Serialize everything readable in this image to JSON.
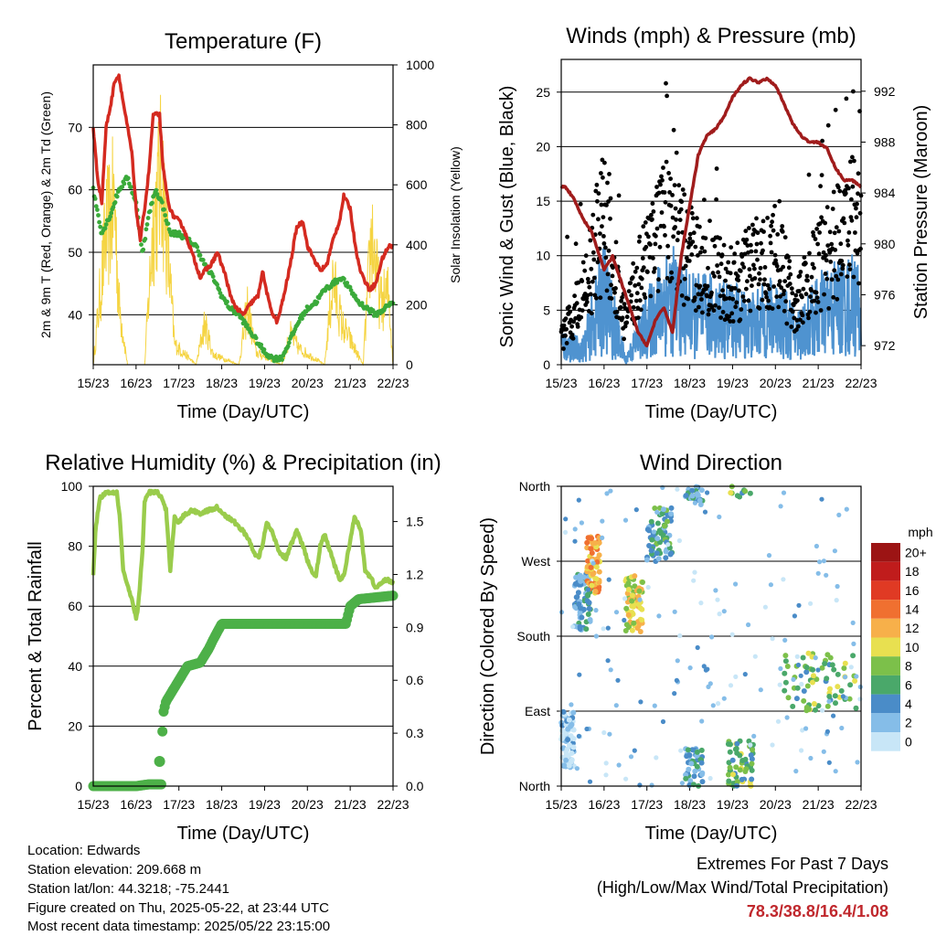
{
  "footer": {
    "location": "Location: Edwards",
    "elevation": "Station elevation: 209.668 m",
    "latlon": "Station lat/lon: 44.3218; -75.2441",
    "created": "Figure created on Thu, 2025-05-22, at 23:44 UTC",
    "timestamp": "Most recent data timestamp: 2025/05/22 23:15:00",
    "extremes_title": "Extremes For Past 7 Days",
    "extremes_subtitle": "(High/Low/Max Wind/Total Precipitation)",
    "extremes_values": "78.3/38.8/16.4/1.08",
    "extremes_color": "#c0282d"
  },
  "colors": {
    "temp2m": "#2ca32c",
    "temp9m": "#e07820",
    "tempRed": "#d42a20",
    "dewpoint": "#3aaa3a",
    "solar": "#f5d442",
    "sonic": "#4f93d0",
    "gust": "#000000",
    "pressure": "#a01c1c",
    "rh": "#9acc4c",
    "precip": "#4db048"
  },
  "chart_data": [
    {
      "type": "line",
      "title": "Temperature (F)",
      "xlabel": "Time (Day/UTC)",
      "ylabel": "2m & 9m T (Red, Orange) & 2m Td (Green)",
      "y2label": "Solar Insolation (Yellow)",
      "x_ticks": [
        "15/23",
        "16/23",
        "17/23",
        "18/23",
        "19/23",
        "20/23",
        "21/23",
        "22/23"
      ],
      "ylim": [
        32,
        80
      ],
      "y_ticks": [
        40,
        50,
        60,
        70
      ],
      "y2lim": [
        0,
        1000
      ],
      "y2_ticks": [
        0,
        200,
        400,
        600,
        800,
        1000
      ],
      "grid": true,
      "series": [
        {
          "key": "temp",
          "color_key": "tempRed",
          "x": [
            0,
            0.1,
            0.2,
            0.3,
            0.42,
            0.5,
            0.6,
            0.7,
            0.8,
            0.9,
            1.0,
            1.1,
            1.2,
            1.3,
            1.4,
            1.55,
            1.62,
            1.75,
            1.85,
            2.0,
            2.1,
            2.2,
            2.35,
            2.5,
            2.6,
            2.75,
            2.9,
            3.0,
            3.1,
            3.2,
            3.35,
            3.5,
            3.7,
            3.85,
            3.95,
            4.1,
            4.2,
            4.3,
            4.45,
            4.6,
            4.75,
            4.9,
            5.0,
            5.15,
            5.3,
            5.45,
            5.6,
            5.75,
            5.85,
            6.0,
            6.1,
            6.2,
            6.3,
            6.45,
            6.6,
            6.75,
            6.9,
            7.0
          ],
          "y": [
            70,
            62,
            58,
            70,
            74,
            77.5,
            78.3,
            74,
            70,
            66,
            57,
            52,
            57,
            63,
            72,
            72,
            64,
            58,
            56,
            55,
            54,
            52,
            49,
            46,
            47,
            48,
            50,
            48,
            46,
            43,
            41,
            40,
            42,
            43,
            47,
            42,
            40,
            38.8,
            43,
            48,
            54,
            55,
            51,
            49,
            47,
            48,
            52,
            55,
            59,
            57,
            52,
            48,
            46,
            44,
            45,
            49,
            51,
            51
          ]
        },
        {
          "key": "dewpoint",
          "color_key": "dewpoint",
          "x": [
            0,
            0.2,
            0.4,
            0.6,
            0.8,
            1.0,
            1.15,
            1.3,
            1.45,
            1.6,
            1.8,
            2.0,
            2.2,
            2.4,
            2.6,
            2.8,
            3.0,
            3.2,
            3.4,
            3.6,
            3.8,
            4.0,
            4.2,
            4.4,
            4.6,
            4.8,
            5.0,
            5.2,
            5.4,
            5.6,
            5.8,
            6.0,
            6.2,
            6.4,
            6.6,
            6.8,
            7.0
          ],
          "y": [
            60,
            53,
            56,
            60,
            62,
            58,
            50,
            56,
            60,
            58,
            53,
            53,
            52,
            51,
            48,
            46,
            43,
            41,
            40,
            38,
            36,
            34,
            33,
            33,
            36,
            39,
            41,
            42,
            44,
            45,
            46,
            44,
            42,
            41,
            40,
            41,
            42
          ]
        },
        {
          "key": "solar",
          "color_key": "solar",
          "x": [
            0,
            0.3,
            0.5,
            0.6,
            0.8,
            1.2,
            1.4,
            1.6,
            1.9,
            2.4,
            2.6,
            2.8,
            3.4,
            3.6,
            3.8,
            4.4,
            4.6,
            4.8,
            5.4,
            5.6,
            5.8,
            6.3,
            6.5,
            6.7,
            6.9,
            7.0
          ],
          "y": [
            0,
            650,
            800,
            300,
            0,
            0,
            700,
            950,
            100,
            0,
            200,
            50,
            0,
            280,
            60,
            0,
            150,
            80,
            0,
            420,
            200,
            0,
            650,
            300,
            350,
            0
          ]
        }
      ]
    },
    {
      "type": "scatter",
      "title": "Winds (mph) & Pressure (mb)",
      "xlabel": "Time (Day/UTC)",
      "ylabel": "Sonic Wind & Gust (Blue, Black)",
      "y2label": "Station Pressure (Maroon)",
      "x_ticks": [
        "15/23",
        "16/23",
        "17/23",
        "18/23",
        "19/23",
        "20/23",
        "21/23",
        "22/23"
      ],
      "ylim": [
        0,
        28
      ],
      "y_ticks": [
        0,
        5,
        10,
        15,
        20,
        25
      ],
      "y2lim": [
        970.5,
        994.5
      ],
      "y2_ticks": [
        972,
        976,
        980,
        984,
        988,
        992
      ],
      "grid": true,
      "series": [
        {
          "key": "pressure",
          "color_key": "pressure",
          "x": [
            0,
            0.1,
            0.3,
            0.5,
            0.7,
            1.0,
            1.2,
            1.4,
            1.6,
            1.8,
            2.0,
            2.2,
            2.4,
            2.6,
            2.8,
            3.0,
            3.2,
            3.4,
            3.6,
            3.8,
            4.0,
            4.2,
            4.4,
            4.6,
            4.8,
            5.0,
            5.2,
            5.4,
            5.6,
            5.8,
            6.0,
            6.2,
            6.4,
            6.6,
            6.8,
            7.0
          ],
          "y": [
            984.5,
            984.5,
            983.5,
            982,
            981,
            978,
            979,
            977,
            975,
            973,
            972,
            974,
            975,
            973,
            979,
            983,
            987,
            988.5,
            989,
            990,
            991.5,
            992.5,
            993,
            992.7,
            993,
            992.5,
            991,
            989.5,
            988.5,
            988,
            988,
            987.5,
            986,
            985,
            985,
            984.5
          ]
        },
        {
          "key": "sonic_band",
          "color_key": "sonic",
          "x": [
            0,
            0.5,
            1.0,
            1.5,
            2.0,
            2.5,
            3.0,
            3.5,
            4.0,
            4.5,
            5.0,
            5.5,
            6.0,
            6.5,
            7.0
          ],
          "y": [
            2,
            1.5,
            7,
            0.5,
            4,
            7,
            5,
            5,
            4.5,
            4,
            5,
            3,
            5,
            6,
            6
          ]
        },
        {
          "key": "gust_band",
          "color_key": "gust",
          "x": [
            0,
            0.5,
            1.0,
            1.5,
            2.0,
            2.5,
            3.0,
            3.5,
            4.0,
            4.5,
            5.0,
            5.5,
            6.0,
            6.5,
            7.0
          ],
          "y": [
            2.5,
            7,
            15,
            4,
            12,
            14,
            11,
            9,
            8,
            10,
            11,
            6,
            10,
            13,
            15
          ]
        }
      ]
    },
    {
      "type": "line",
      "title": "Relative Humidity (%) & Precipitation (in)",
      "xlabel": "Time (Day/UTC)",
      "ylabel": "Percent & Total Rainfall",
      "x_ticks": [
        "15/23",
        "16/23",
        "17/23",
        "18/23",
        "19/23",
        "20/23",
        "21/23",
        "22/23"
      ],
      "ylim": [
        0,
        100
      ],
      "y_ticks": [
        0,
        20,
        40,
        60,
        80,
        100
      ],
      "y2lim": [
        0,
        1.7
      ],
      "y2_ticks": [
        "0.0",
        "0.3",
        "0.6",
        "0.9",
        "1.2",
        "1.5"
      ],
      "grid": true,
      "series": [
        {
          "key": "rh",
          "color_key": "rh",
          "x": [
            0,
            0.05,
            0.15,
            0.3,
            0.4,
            0.55,
            0.62,
            0.7,
            0.9,
            1.0,
            1.05,
            1.15,
            1.2,
            1.3,
            1.5,
            1.6,
            1.7,
            1.8,
            1.9,
            2.0,
            2.1,
            2.3,
            2.5,
            2.7,
            2.9,
            3.1,
            3.3,
            3.5,
            3.6,
            3.75,
            3.85,
            3.95,
            4.05,
            4.2,
            4.35,
            4.5,
            4.6,
            4.75,
            4.9,
            5.05,
            5.2,
            5.3,
            5.4,
            5.6,
            5.75,
            5.85,
            6.0,
            6.1,
            6.25,
            6.35,
            6.5,
            6.6,
            6.75,
            6.85,
            7.0
          ],
          "y": [
            70,
            85,
            96,
            98,
            98,
            98,
            90,
            72,
            62,
            56,
            60,
            78,
            95,
            98,
            98,
            96,
            92,
            72,
            90,
            88,
            90,
            92,
            91,
            92,
            93,
            90,
            88,
            85,
            83,
            78,
            76,
            80,
            88,
            84,
            78,
            76,
            80,
            85,
            80,
            73,
            70,
            80,
            84,
            75,
            69,
            70,
            82,
            90,
            85,
            72,
            69,
            66,
            68,
            69,
            68
          ]
        },
        {
          "key": "precip",
          "color_key": "precip",
          "x": [
            0,
            0.5,
            1.0,
            1.3,
            1.6,
            1.62,
            1.7,
            1.8,
            2.0,
            2.2,
            2.5,
            2.7,
            2.8,
            3.0,
            5.0,
            5.3,
            5.6,
            5.9,
            6.0,
            6.2,
            7.0
          ],
          "y": [
            0,
            0,
            0,
            0.01,
            0.01,
            0.4,
            0.48,
            0.52,
            0.6,
            0.68,
            0.7,
            0.78,
            0.83,
            0.92,
            0.92,
            0.92,
            0.92,
            0.92,
            1.02,
            1.06,
            1.08
          ]
        }
      ]
    },
    {
      "type": "scatter",
      "title": "Wind Direction",
      "xlabel": "Time (Day/UTC)",
      "ylabel": "Direction (Colored By Speed)",
      "x_ticks": [
        "15/23",
        "16/23",
        "17/23",
        "18/23",
        "19/23",
        "20/23",
        "21/23",
        "22/23"
      ],
      "y_ticks": [
        "North",
        "East",
        "South",
        "West",
        "North"
      ],
      "grid": true,
      "colorbar": {
        "unit": "mph",
        "labels": [
          "0",
          "2",
          "4",
          "6",
          "8",
          "10",
          "12",
          "14",
          "16",
          "18",
          "20+"
        ],
        "colors": [
          "#c8e6f7",
          "#85bde8",
          "#4a8cc8",
          "#4aa86a",
          "#7cc04a",
          "#e8e050",
          "#f7b04a",
          "#f07030",
          "#e03a24",
          "#c01c1c",
          "#9c1414"
        ]
      },
      "clusters": [
        {
          "x0": 0.0,
          "x1": 0.3,
          "dir": "East-North",
          "speed": 1
        },
        {
          "x0": 0.3,
          "x1": 0.7,
          "dir": "South-West",
          "speed": 4
        },
        {
          "x0": 0.6,
          "x1": 0.9,
          "dir": "West",
          "speed": 12
        },
        {
          "x0": 1.5,
          "x1": 1.9,
          "dir": "South-West",
          "speed": 10
        },
        {
          "x0": 2.0,
          "x1": 2.6,
          "dir": "North-West",
          "speed": 5
        },
        {
          "x0": 2.9,
          "x1": 3.3,
          "dir": "North",
          "speed": 4
        },
        {
          "x0": 3.9,
          "x1": 4.5,
          "dir": "North-East",
          "speed": 7
        },
        {
          "x0": 5.2,
          "x1": 6.9,
          "dir": "East-South",
          "speed": 7
        }
      ]
    }
  ]
}
